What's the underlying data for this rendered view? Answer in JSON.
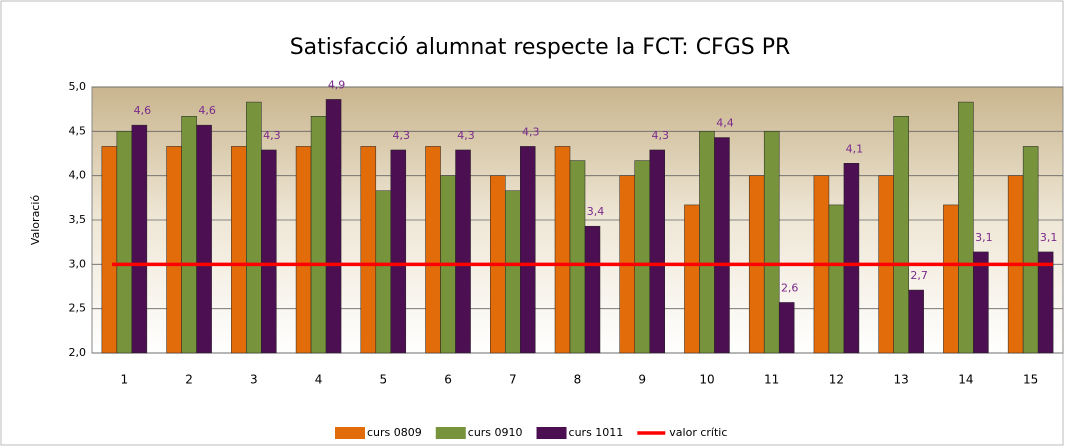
{
  "chart_data": {
    "type": "bar",
    "title": "Satisfacció alumnat respecte la FCT: CFGS PR",
    "y_label": "Valoració",
    "categories": [
      "1",
      "2",
      "3",
      "4",
      "5",
      "6",
      "7",
      "8",
      "9",
      "10",
      "11",
      "12",
      "13",
      "14",
      "15"
    ],
    "ylim": [
      2,
      5
    ],
    "yticks": [
      {
        "value": 2,
        "label": "2,0"
      },
      {
        "value": 2.5,
        "label": "2,5"
      },
      {
        "value": 3,
        "label": "3,0"
      },
      {
        "value": 3.5,
        "label": "3,5"
      },
      {
        "value": 4,
        "label": "4,0"
      },
      {
        "value": 4.5,
        "label": "4,5"
      },
      {
        "value": 5,
        "label": "5,0"
      }
    ],
    "grid": true,
    "legend": "bottom",
    "series": [
      {
        "name": "curs 0809",
        "color": "#e36c0a",
        "values": [
          4.33,
          4.33,
          4.33,
          4.33,
          4.33,
          4.33,
          4.0,
          4.33,
          4.0,
          3.67,
          4.0,
          4.0,
          4.0,
          3.67,
          4.0
        ]
      },
      {
        "name": "curs 0910",
        "color": "#77933c",
        "values": [
          4.5,
          4.67,
          4.83,
          4.67,
          3.83,
          4.0,
          3.83,
          4.17,
          4.17,
          4.5,
          4.5,
          3.67,
          4.67,
          4.83,
          4.33
        ]
      },
      {
        "name": "curs 1011",
        "color": "#4b0f52",
        "values": [
          4.57,
          4.57,
          4.29,
          4.86,
          4.29,
          4.29,
          4.33,
          3.43,
          4.29,
          4.43,
          2.57,
          4.14,
          2.71,
          3.14,
          3.14
        ],
        "value_labels": [
          "4,6",
          "4,6",
          "4,3",
          "4,9",
          "4,3",
          "4,3",
          "4,3",
          "3,4",
          "4,3",
          "4,4",
          "2,6",
          "4,1",
          "2,7",
          "3,1",
          "3,1"
        ]
      },
      {
        "name": "valor crític",
        "color": "#ff0000",
        "type": "line",
        "values": [
          3,
          3,
          3,
          3,
          3,
          3,
          3,
          3,
          3,
          3,
          3,
          3,
          3,
          3,
          3
        ]
      }
    ]
  }
}
